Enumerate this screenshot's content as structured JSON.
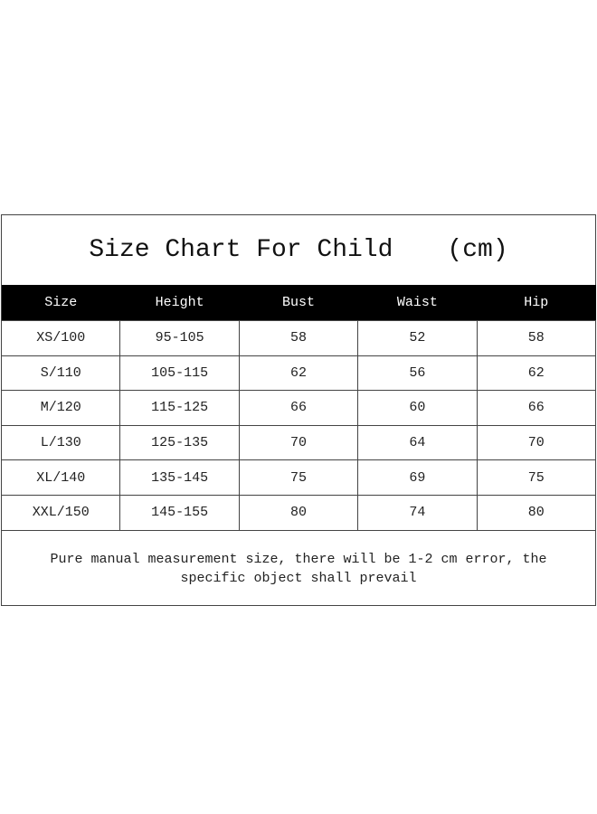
{
  "title": "Size Chart For Child",
  "unit": "(cm)",
  "columns": [
    "Size",
    "Height",
    "Bust",
    "Waist",
    "Hip"
  ],
  "rows": [
    [
      "XS/100",
      "95-105",
      "58",
      "52",
      "58"
    ],
    [
      "S/110",
      "105-115",
      "62",
      "56",
      "62"
    ],
    [
      "M/120",
      "115-125",
      "66",
      "60",
      "66"
    ],
    [
      "L/130",
      "125-135",
      "70",
      "64",
      "70"
    ],
    [
      "XL/140",
      "135-145",
      "75",
      "69",
      "75"
    ],
    [
      "XXL/150",
      "145-155",
      "80",
      "74",
      "80"
    ]
  ],
  "note": "Pure manual measurement size, there will be 1-2 cm error, the specific object shall prevail"
}
